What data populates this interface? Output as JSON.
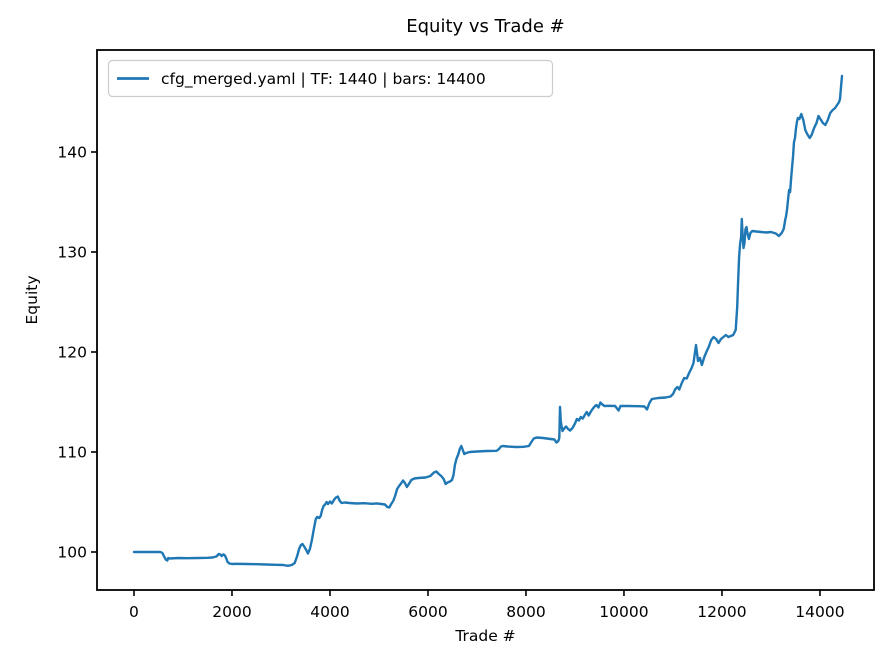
{
  "chart_data": {
    "type": "line",
    "title": "Equity vs Trade #",
    "xlabel": "Trade #",
    "ylabel": "Equity",
    "grid": false,
    "legend_position": "upper left",
    "legend_entries": [
      "cfg_merged.yaml | TF: 1440 | bars: 14400"
    ],
    "x_ticks": [
      0,
      2000,
      4000,
      6000,
      8000,
      10000,
      12000,
      14000
    ],
    "y_ticks": [
      100,
      110,
      120,
      130,
      140
    ],
    "xlim": [
      -755,
      15103
    ],
    "ylim": [
      96.2,
      150.2
    ],
    "colors": {
      "line": "#1f77b4",
      "axes": "#000000",
      "background": "#ffffff",
      "legend_border": "#cccccc"
    },
    "series": [
      {
        "name": "cfg_merged.yaml | TF: 1440 | bars: 14400",
        "color": "#1f77b4",
        "points": [
          [
            0,
            100.0
          ],
          [
            80,
            100.0
          ],
          [
            200,
            100.0
          ],
          [
            400,
            100.0
          ],
          [
            540,
            100.0
          ],
          [
            580,
            99.9
          ],
          [
            620,
            99.5
          ],
          [
            650,
            99.25
          ],
          [
            680,
            99.15
          ],
          [
            700,
            99.4
          ],
          [
            730,
            99.35
          ],
          [
            900,
            99.4
          ],
          [
            1100,
            99.38
          ],
          [
            1300,
            99.4
          ],
          [
            1500,
            99.42
          ],
          [
            1600,
            99.45
          ],
          [
            1680,
            99.55
          ],
          [
            1730,
            99.8
          ],
          [
            1760,
            99.75
          ],
          [
            1790,
            99.6
          ],
          [
            1820,
            99.75
          ],
          [
            1850,
            99.7
          ],
          [
            1880,
            99.4
          ],
          [
            1910,
            99.0
          ],
          [
            1950,
            98.85
          ],
          [
            2000,
            98.8
          ],
          [
            2100,
            98.82
          ],
          [
            2300,
            98.8
          ],
          [
            2500,
            98.78
          ],
          [
            2700,
            98.75
          ],
          [
            2900,
            98.72
          ],
          [
            3050,
            98.7
          ],
          [
            3140,
            98.62
          ],
          [
            3220,
            98.7
          ],
          [
            3280,
            98.9
          ],
          [
            3330,
            99.6
          ],
          [
            3370,
            100.3
          ],
          [
            3400,
            100.65
          ],
          [
            3440,
            100.8
          ],
          [
            3480,
            100.5
          ],
          [
            3520,
            100.15
          ],
          [
            3550,
            99.85
          ],
          [
            3590,
            100.3
          ],
          [
            3630,
            101.2
          ],
          [
            3660,
            102.0
          ],
          [
            3690,
            102.8
          ],
          [
            3710,
            103.3
          ],
          [
            3740,
            103.5
          ],
          [
            3780,
            103.4
          ],
          [
            3810,
            103.6
          ],
          [
            3840,
            104.2
          ],
          [
            3870,
            104.6
          ],
          [
            3900,
            104.75
          ],
          [
            3930,
            105.0
          ],
          [
            3960,
            104.8
          ],
          [
            4000,
            105.05
          ],
          [
            4040,
            104.85
          ],
          [
            4080,
            105.2
          ],
          [
            4120,
            105.45
          ],
          [
            4160,
            105.55
          ],
          [
            4200,
            105.1
          ],
          [
            4240,
            104.9
          ],
          [
            4300,
            104.95
          ],
          [
            4400,
            104.9
          ],
          [
            4550,
            104.85
          ],
          [
            4700,
            104.88
          ],
          [
            4850,
            104.82
          ],
          [
            4950,
            104.86
          ],
          [
            5050,
            104.8
          ],
          [
            5120,
            104.75
          ],
          [
            5170,
            104.5
          ],
          [
            5210,
            104.45
          ],
          [
            5250,
            104.8
          ],
          [
            5290,
            105.1
          ],
          [
            5330,
            105.6
          ],
          [
            5370,
            106.3
          ],
          [
            5410,
            106.6
          ],
          [
            5450,
            106.85
          ],
          [
            5490,
            107.15
          ],
          [
            5530,
            106.9
          ],
          [
            5570,
            106.5
          ],
          [
            5610,
            106.8
          ],
          [
            5660,
            107.2
          ],
          [
            5720,
            107.35
          ],
          [
            5800,
            107.4
          ],
          [
            5950,
            107.45
          ],
          [
            6050,
            107.6
          ],
          [
            6120,
            107.95
          ],
          [
            6170,
            108.05
          ],
          [
            6220,
            107.8
          ],
          [
            6270,
            107.6
          ],
          [
            6320,
            107.3
          ],
          [
            6360,
            106.8
          ],
          [
            6400,
            106.95
          ],
          [
            6450,
            107.05
          ],
          [
            6490,
            107.2
          ],
          [
            6520,
            107.7
          ],
          [
            6550,
            108.7
          ],
          [
            6580,
            109.3
          ],
          [
            6620,
            109.8
          ],
          [
            6650,
            110.3
          ],
          [
            6680,
            110.6
          ],
          [
            6710,
            110.2
          ],
          [
            6740,
            109.8
          ],
          [
            6780,
            109.9
          ],
          [
            6850,
            110.0
          ],
          [
            7000,
            110.05
          ],
          [
            7200,
            110.1
          ],
          [
            7400,
            110.12
          ],
          [
            7450,
            110.3
          ],
          [
            7490,
            110.55
          ],
          [
            7530,
            110.6
          ],
          [
            7620,
            110.55
          ],
          [
            7800,
            110.5
          ],
          [
            7950,
            110.52
          ],
          [
            8060,
            110.6
          ],
          [
            8110,
            111.0
          ],
          [
            8160,
            111.35
          ],
          [
            8220,
            111.45
          ],
          [
            8350,
            111.4
          ],
          [
            8500,
            111.3
          ],
          [
            8580,
            111.25
          ],
          [
            8620,
            110.95
          ],
          [
            8660,
            111.1
          ],
          [
            8680,
            111.4
          ],
          [
            8695,
            114.5
          ],
          [
            8710,
            113.1
          ],
          [
            8725,
            112.6
          ],
          [
            8745,
            112.1
          ],
          [
            8780,
            112.35
          ],
          [
            8820,
            112.55
          ],
          [
            8860,
            112.3
          ],
          [
            8900,
            112.15
          ],
          [
            8950,
            112.4
          ],
          [
            9000,
            112.85
          ],
          [
            9040,
            113.3
          ],
          [
            9080,
            113.15
          ],
          [
            9120,
            113.5
          ],
          [
            9160,
            113.35
          ],
          [
            9200,
            113.7
          ],
          [
            9240,
            114.0
          ],
          [
            9280,
            113.65
          ],
          [
            9320,
            114.0
          ],
          [
            9360,
            114.3
          ],
          [
            9400,
            114.55
          ],
          [
            9440,
            114.7
          ],
          [
            9480,
            114.45
          ],
          [
            9520,
            114.95
          ],
          [
            9560,
            114.75
          ],
          [
            9600,
            114.6
          ],
          [
            9700,
            114.62
          ],
          [
            9820,
            114.6
          ],
          [
            9890,
            114.15
          ],
          [
            9930,
            114.6
          ],
          [
            10100,
            114.6
          ],
          [
            10300,
            114.58
          ],
          [
            10420,
            114.55
          ],
          [
            10470,
            114.25
          ],
          [
            10520,
            114.9
          ],
          [
            10570,
            115.3
          ],
          [
            10700,
            115.4
          ],
          [
            10850,
            115.45
          ],
          [
            10950,
            115.55
          ],
          [
            11000,
            115.8
          ],
          [
            11050,
            116.3
          ],
          [
            11090,
            116.5
          ],
          [
            11130,
            116.25
          ],
          [
            11180,
            116.9
          ],
          [
            11230,
            117.4
          ],
          [
            11280,
            117.35
          ],
          [
            11330,
            117.9
          ],
          [
            11380,
            118.4
          ],
          [
            11420,
            118.9
          ],
          [
            11470,
            120.7
          ],
          [
            11510,
            119.1
          ],
          [
            11550,
            119.4
          ],
          [
            11590,
            118.7
          ],
          [
            11640,
            119.5
          ],
          [
            11690,
            120.1
          ],
          [
            11730,
            120.5
          ],
          [
            11780,
            121.2
          ],
          [
            11830,
            121.5
          ],
          [
            11880,
            121.3
          ],
          [
            11930,
            120.9
          ],
          [
            11980,
            121.3
          ],
          [
            12030,
            121.5
          ],
          [
            12080,
            121.7
          ],
          [
            12130,
            121.5
          ],
          [
            12180,
            121.6
          ],
          [
            12230,
            121.7
          ],
          [
            12280,
            122.2
          ],
          [
            12310,
            124.5
          ],
          [
            12330,
            127.0
          ],
          [
            12350,
            129.5
          ],
          [
            12370,
            130.8
          ],
          [
            12390,
            131.5
          ],
          [
            12405,
            133.3
          ],
          [
            12420,
            131.9
          ],
          [
            12440,
            130.4
          ],
          [
            12460,
            130.9
          ],
          [
            12480,
            132.3
          ],
          [
            12500,
            132.5
          ],
          [
            12520,
            131.9
          ],
          [
            12550,
            131.3
          ],
          [
            12580,
            131.9
          ],
          [
            12620,
            132.1
          ],
          [
            12700,
            132.05
          ],
          [
            12800,
            132.0
          ],
          [
            12900,
            131.95
          ],
          [
            13000,
            132.0
          ],
          [
            13100,
            131.85
          ],
          [
            13160,
            131.6
          ],
          [
            13220,
            131.9
          ],
          [
            13260,
            132.3
          ],
          [
            13290,
            133.2
          ],
          [
            13310,
            133.6
          ],
          [
            13330,
            134.3
          ],
          [
            13350,
            135.3
          ],
          [
            13370,
            136.2
          ],
          [
            13390,
            136.0
          ],
          [
            13410,
            137.2
          ],
          [
            13430,
            138.4
          ],
          [
            13450,
            139.5
          ],
          [
            13470,
            141.0
          ],
          [
            13490,
            141.4
          ],
          [
            13510,
            142.3
          ],
          [
            13530,
            143.0
          ],
          [
            13550,
            143.4
          ],
          [
            13580,
            143.3
          ],
          [
            13620,
            143.8
          ],
          [
            13660,
            143.2
          ],
          [
            13700,
            142.2
          ],
          [
            13740,
            141.8
          ],
          [
            13790,
            141.4
          ],
          [
            13830,
            141.7
          ],
          [
            13880,
            142.4
          ],
          [
            13930,
            142.9
          ],
          [
            13970,
            143.6
          ],
          [
            14010,
            143.3
          ],
          [
            14060,
            142.9
          ],
          [
            14110,
            142.7
          ],
          [
            14160,
            143.2
          ],
          [
            14210,
            143.9
          ],
          [
            14260,
            144.2
          ],
          [
            14310,
            144.4
          ],
          [
            14350,
            144.7
          ],
          [
            14390,
            145.0
          ],
          [
            14410,
            145.3
          ],
          [
            14430,
            146.5
          ],
          [
            14450,
            147.6
          ]
        ]
      }
    ]
  }
}
